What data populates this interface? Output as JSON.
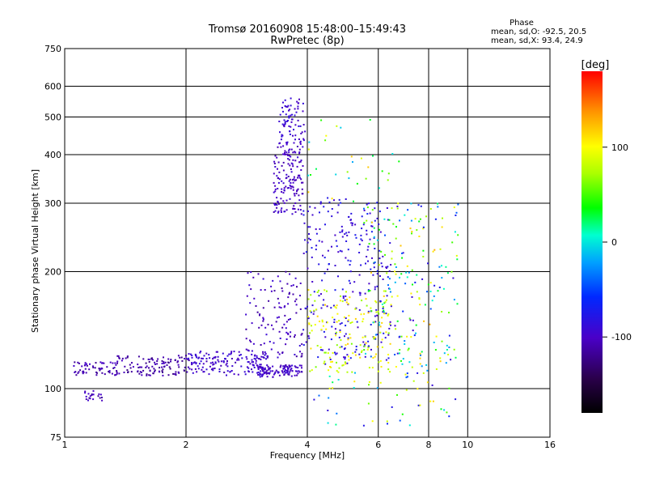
{
  "chart_data": {
    "type": "scatter",
    "title": "Tromsø 20160908 15:48:00–15:49:43",
    "subtitle": "RwPretec (8p)",
    "xlabel": "Frequency [MHz]",
    "ylabel": "Stationary phase Virtual Height [km]",
    "x_scale": "log",
    "y_scale": "log",
    "xlim": [
      1,
      16
    ],
    "ylim": [
      75,
      750
    ],
    "x_ticks": [
      1,
      2,
      4,
      6,
      8,
      10,
      16
    ],
    "x_tick_labels": [
      "1",
      "2",
      "4",
      "6",
      "8",
      "10",
      "16"
    ],
    "x_gridlines": [
      2,
      4,
      6,
      8,
      10
    ],
    "y_ticks": [
      75,
      100,
      200,
      300,
      400,
      500,
      600,
      750
    ],
    "y_tick_labels": [
      "75",
      "100",
      "200",
      "300",
      "400",
      "500",
      "600",
      "750"
    ],
    "y_gridlines": [
      100,
      200,
      300,
      400,
      500,
      600
    ],
    "grid": true,
    "color_by": "phase_deg",
    "colorbar": {
      "label": "[deg]",
      "range": [
        -180,
        180
      ],
      "ticks": [
        100,
        0,
        -100
      ],
      "tick_labels": [
        "100",
        "0",
        "-100"
      ]
    },
    "stats": {
      "heading": "Phase",
      "line_o": "mean, sd,O:  -92.5, 20.5",
      "line_x": "mean, sd,X:  93.4, 24.9"
    },
    "clusters": [
      {
        "f": [
          1.05,
          1.35
        ],
        "h": [
          108,
          117
        ],
        "phase": [
          -120,
          -95
        ],
        "n": 60
      },
      {
        "f": [
          1.35,
          2.0
        ],
        "h": [
          108,
          122
        ],
        "phase": [
          -125,
          -100
        ],
        "n": 110
      },
      {
        "f": [
          2.0,
          3.2
        ],
        "h": [
          108,
          125
        ],
        "phase": [
          -110,
          -85
        ],
        "n": 160
      },
      {
        "f": [
          3.0,
          3.9
        ],
        "h": [
          107,
          115
        ],
        "phase": [
          -110,
          -90
        ],
        "n": 120
      },
      {
        "f": [
          1.12,
          1.25
        ],
        "h": [
          93,
          99
        ],
        "phase": [
          -115,
          -95
        ],
        "n": 20
      },
      {
        "f": [
          2.8,
          3.9
        ],
        "h": [
          120,
          200
        ],
        "phase": [
          -115,
          -90
        ],
        "n": 120
      },
      {
        "f": [
          3.3,
          3.9
        ],
        "h": [
          280,
          420
        ],
        "phase": [
          -110,
          -90
        ],
        "n": 150
      },
      {
        "f": [
          3.4,
          3.95
        ],
        "h": [
          420,
          560
        ],
        "phase": [
          -105,
          -85
        ],
        "n": 80
      },
      {
        "f": [
          3.9,
          6.5
        ],
        "h": [
          115,
          310
        ],
        "phase": [
          -100,
          -70
        ],
        "n": 260
      },
      {
        "f": [
          4.0,
          6.5
        ],
        "h": [
          110,
          180
        ],
        "phase": [
          60,
          120
        ],
        "n": 150
      },
      {
        "f": [
          5.5,
          9.5
        ],
        "h": [
          110,
          300
        ],
        "phase": [
          -100,
          130
        ],
        "n": 220
      },
      {
        "f": [
          4.0,
          9.5
        ],
        "h": [
          80,
          110
        ],
        "phase": [
          -90,
          120
        ],
        "n": 50
      },
      {
        "f": [
          4.0,
          7.0
        ],
        "h": [
          300,
          500
        ],
        "phase": [
          -20,
          120
        ],
        "n": 30
      }
    ]
  }
}
